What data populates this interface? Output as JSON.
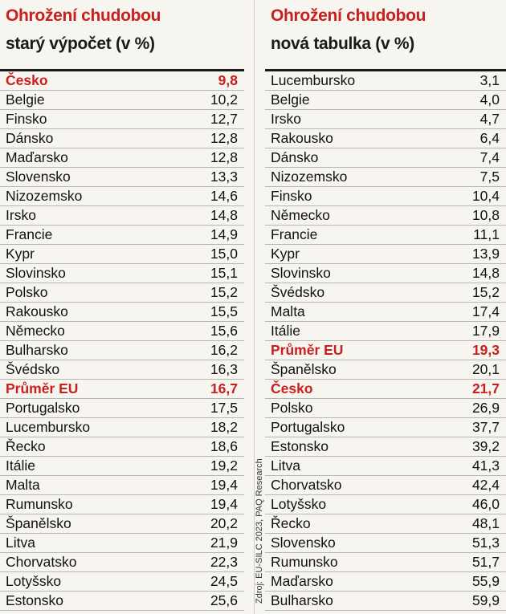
{
  "source": "Zdroj: EU-SILC 2023, PAQ Research",
  "chart_data": [
    {
      "type": "table",
      "title": "Ohrožení chudobou",
      "subtitle": "starý výpočet (v %)",
      "highlight_color": "#c8201e",
      "rows": [
        {
          "name": "Česko",
          "value": "9,8",
          "highlight": true
        },
        {
          "name": "Belgie",
          "value": "10,2"
        },
        {
          "name": "Finsko",
          "value": "12,7"
        },
        {
          "name": "Dánsko",
          "value": "12,8"
        },
        {
          "name": "Maďarsko",
          "value": "12,8"
        },
        {
          "name": "Slovensko",
          "value": "13,3"
        },
        {
          "name": "Nizozemsko",
          "value": "14,6"
        },
        {
          "name": "Irsko",
          "value": "14,8"
        },
        {
          "name": "Francie",
          "value": "14,9"
        },
        {
          "name": "Kypr",
          "value": "15,0"
        },
        {
          "name": "Slovinsko",
          "value": "15,1"
        },
        {
          "name": "Polsko",
          "value": "15,2"
        },
        {
          "name": "Rakousko",
          "value": "15,5"
        },
        {
          "name": "Německo",
          "value": "15,6"
        },
        {
          "name": "Bulharsko",
          "value": "16,2"
        },
        {
          "name": "Švédsko",
          "value": "16,3"
        },
        {
          "name": "Průměr EU",
          "value": "16,7",
          "highlight": true
        },
        {
          "name": "Portugalsko",
          "value": "17,5"
        },
        {
          "name": "Lucembursko",
          "value": "18,2"
        },
        {
          "name": "Řecko",
          "value": "18,6"
        },
        {
          "name": "Itálie",
          "value": "19,2"
        },
        {
          "name": "Malta",
          "value": "19,4"
        },
        {
          "name": "Rumunsko",
          "value": "19,4"
        },
        {
          "name": "Španělsko",
          "value": "20,2"
        },
        {
          "name": "Litva",
          "value": "21,9"
        },
        {
          "name": "Chorvatsko",
          "value": "22,3"
        },
        {
          "name": "Lotyšsko",
          "value": "24,5"
        },
        {
          "name": "Estonsko",
          "value": "25,6"
        }
      ]
    },
    {
      "type": "table",
      "title": "Ohrožení chudobou",
      "subtitle": "nová tabulka (v %)",
      "highlight_color": "#c8201e",
      "rows": [
        {
          "name": "Lucembursko",
          "value": "3,1"
        },
        {
          "name": "Belgie",
          "value": "4,0"
        },
        {
          "name": "Irsko",
          "value": "4,7"
        },
        {
          "name": "Rakousko",
          "value": "6,4"
        },
        {
          "name": "Dánsko",
          "value": "7,4"
        },
        {
          "name": "Nizozemsko",
          "value": "7,5"
        },
        {
          "name": "Finsko",
          "value": "10,4"
        },
        {
          "name": "Německo",
          "value": "10,8"
        },
        {
          "name": "Francie",
          "value": "11,1"
        },
        {
          "name": "Kypr",
          "value": "13,9"
        },
        {
          "name": "Slovinsko",
          "value": "14,8"
        },
        {
          "name": "Švédsko",
          "value": "15,2"
        },
        {
          "name": "Malta",
          "value": "17,4"
        },
        {
          "name": "Itálie",
          "value": "17,9"
        },
        {
          "name": "Průměr EU",
          "value": "19,3",
          "highlight": true
        },
        {
          "name": "Španělsko",
          "value": "20,1"
        },
        {
          "name": "Česko",
          "value": "21,7",
          "highlight": true
        },
        {
          "name": "Polsko",
          "value": "26,9"
        },
        {
          "name": "Portugalsko",
          "value": "37,7"
        },
        {
          "name": "Estonsko",
          "value": "39,2"
        },
        {
          "name": "Litva",
          "value": "41,3"
        },
        {
          "name": "Chorvatsko",
          "value": "42,4"
        },
        {
          "name": "Lotyšsko",
          "value": "46,0"
        },
        {
          "name": "Řecko",
          "value": "48,1"
        },
        {
          "name": "Slovensko",
          "value": "51,3"
        },
        {
          "name": "Rumunsko",
          "value": "51,7"
        },
        {
          "name": "Maďarsko",
          "value": "55,9"
        },
        {
          "name": "Bulharsko",
          "value": "59,9"
        }
      ]
    }
  ]
}
